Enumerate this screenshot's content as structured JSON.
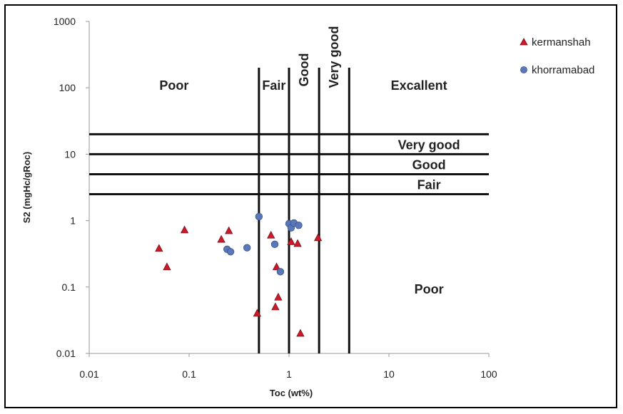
{
  "chart_data": {
    "type": "scatter",
    "xlabel": "Toc (wt%)",
    "ylabel": "S2 (mgHc/gRoc)",
    "x_scale": "log",
    "y_scale": "log",
    "xlim": [
      0.01,
      100
    ],
    "ylim": [
      0.01,
      1000
    ],
    "x_ticks": [
      "0.01",
      "0.1",
      "1",
      "10",
      "100"
    ],
    "y_ticks": [
      "0.01",
      "0.1",
      "1",
      "10",
      "100",
      "1000"
    ],
    "grid": false,
    "legend_position": "top-right",
    "toc_boundaries": [
      0.5,
      1,
      2,
      4
    ],
    "s2_boundaries": [
      2.5,
      5,
      10,
      20
    ],
    "zone_labels_toc": [
      "Poor",
      "Fair",
      "Good",
      "Very good",
      "Excallent"
    ],
    "zone_labels_s2": [
      "Fair",
      "Good",
      "Very good",
      "Poor"
    ],
    "series": [
      {
        "name": "kermanshah",
        "marker": "triangle",
        "color": "#cc1a2a",
        "points": [
          {
            "x": 0.05,
            "y": 0.38
          },
          {
            "x": 0.06,
            "y": 0.2
          },
          {
            "x": 0.09,
            "y": 0.72
          },
          {
            "x": 0.21,
            "y": 0.52
          },
          {
            "x": 0.25,
            "y": 0.7
          },
          {
            "x": 0.48,
            "y": 0.04
          },
          {
            "x": 0.66,
            "y": 0.6
          },
          {
            "x": 0.73,
            "y": 0.05
          },
          {
            "x": 0.75,
            "y": 0.2
          },
          {
            "x": 0.78,
            "y": 0.07
          },
          {
            "x": 1.05,
            "y": 0.48
          },
          {
            "x": 1.22,
            "y": 0.45
          },
          {
            "x": 1.3,
            "y": 0.02
          },
          {
            "x": 1.95,
            "y": 0.55
          }
        ]
      },
      {
        "name": "khorramabad",
        "marker": "circle",
        "color": "#5a78b8",
        "points": [
          {
            "x": 0.24,
            "y": 0.37
          },
          {
            "x": 0.26,
            "y": 0.34
          },
          {
            "x": 0.38,
            "y": 0.39
          },
          {
            "x": 0.5,
            "y": 1.15
          },
          {
            "x": 0.72,
            "y": 0.44
          },
          {
            "x": 0.82,
            "y": 0.17
          },
          {
            "x": 1.0,
            "y": 0.9
          },
          {
            "x": 1.05,
            "y": 0.78
          },
          {
            "x": 1.12,
            "y": 0.92
          },
          {
            "x": 1.25,
            "y": 0.85
          }
        ]
      }
    ]
  }
}
